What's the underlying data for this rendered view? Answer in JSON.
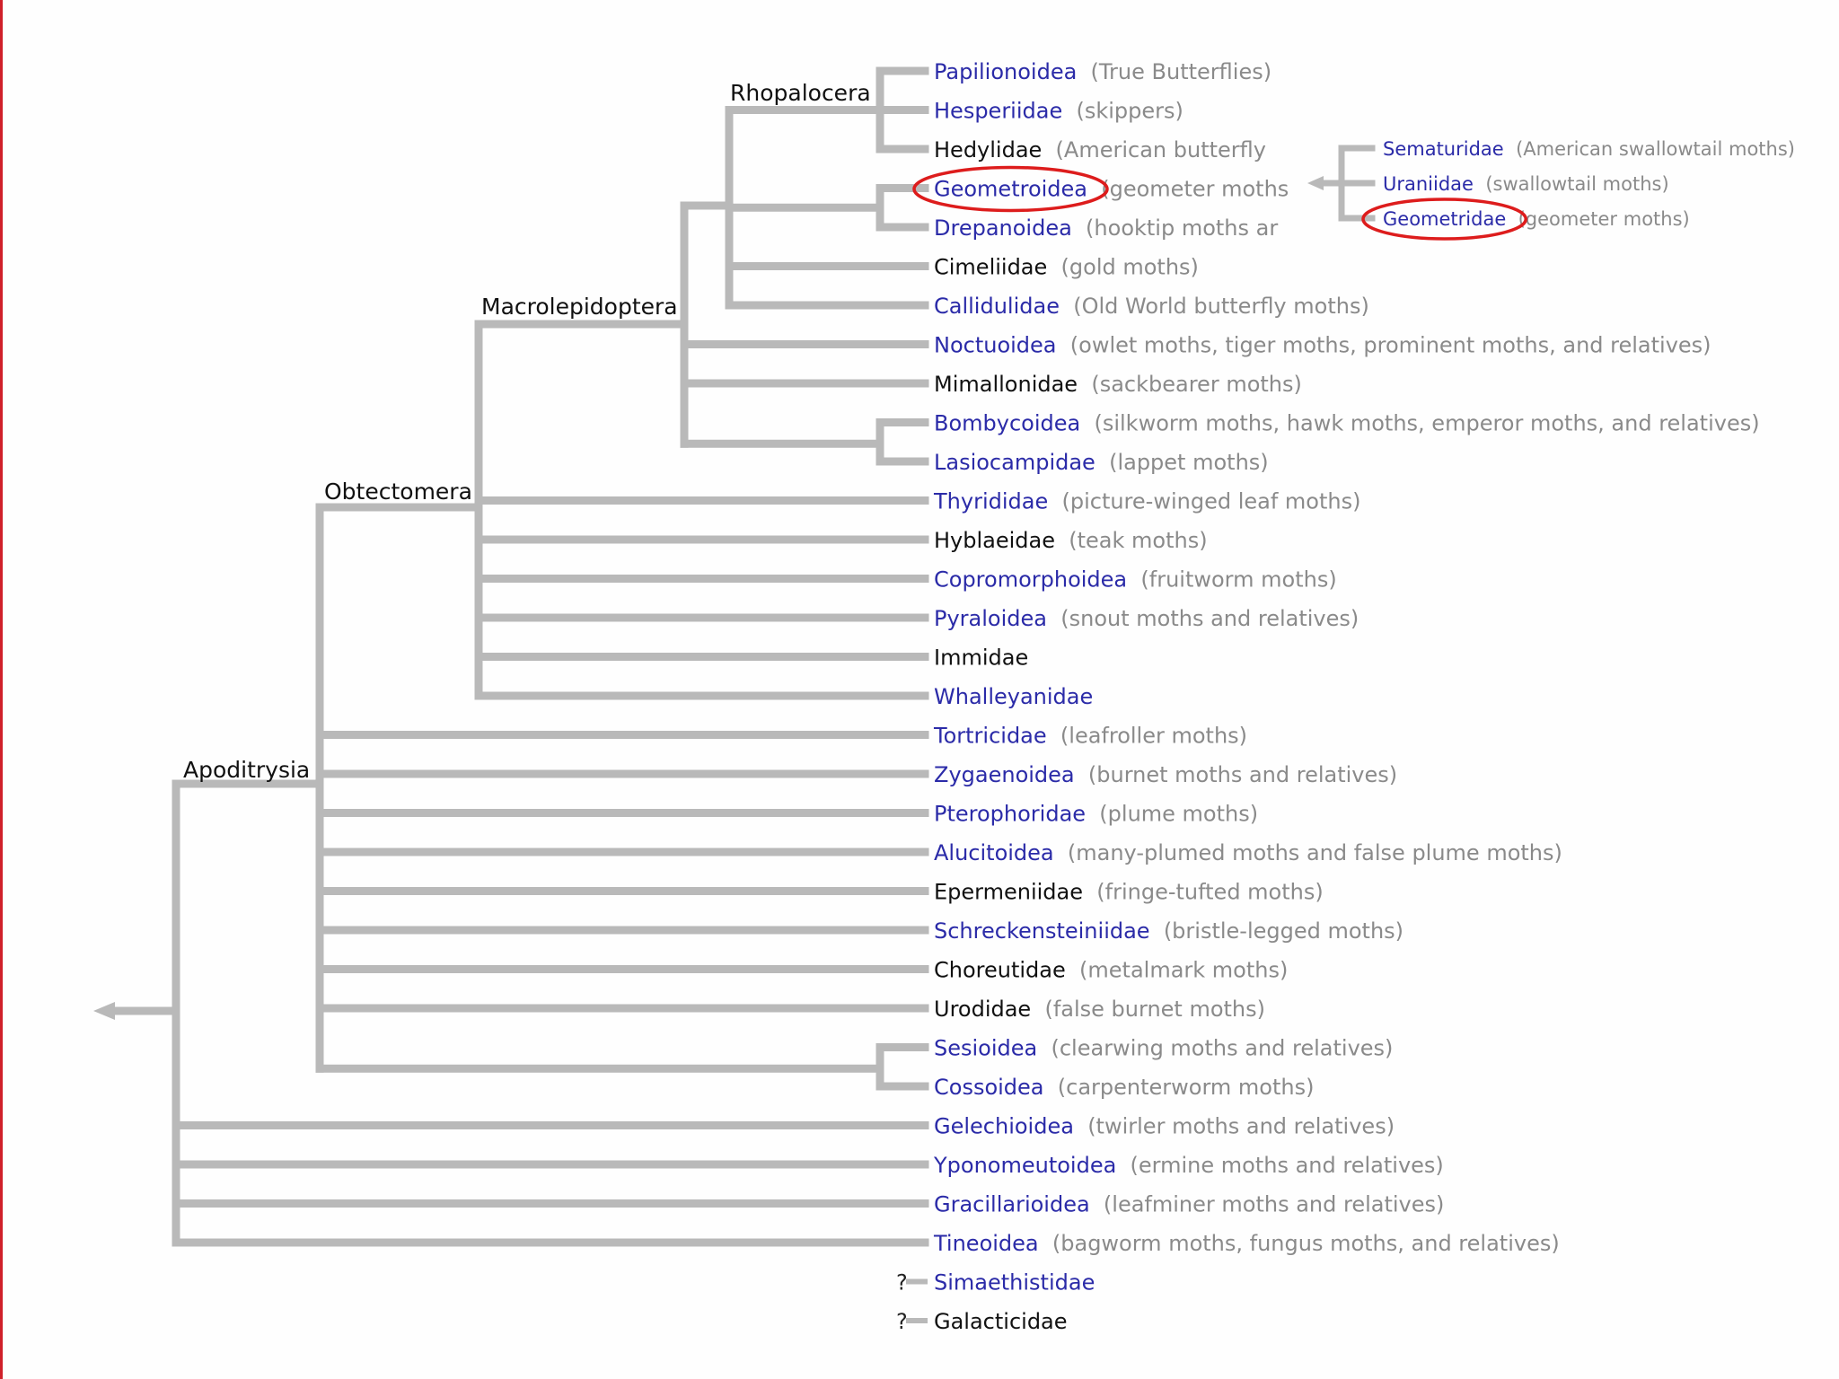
{
  "colors": {
    "branch": "#b9b9b9",
    "link_name": "#2b2ba8",
    "plain_name": "#111111",
    "description": "#8a8a8a",
    "highlight_circle": "#dd1c1c",
    "border": "#d0202a"
  },
  "clades": {
    "rhopalocera": "Rhopalocera",
    "macrolepidoptera": "Macrolepidoptera",
    "obtectomera": "Obtectomera",
    "apoditrysia": "Apoditrysia"
  },
  "taxa": [
    {
      "name": "Papilionoidea",
      "desc": "(True Butterflies)",
      "link": true
    },
    {
      "name": "Hesperiidae",
      "desc": "(skippers)",
      "link": true
    },
    {
      "name": "Hedylidae",
      "desc": "(American butterfly",
      "link": false
    },
    {
      "name": "Geometroidea",
      "desc": "(geometer moths",
      "link": true
    },
    {
      "name": "Drepanoidea",
      "desc": "(hooktip moths ar",
      "link": true
    },
    {
      "name": "Cimeliidae",
      "desc": "(gold moths)",
      "link": false
    },
    {
      "name": "Callidulidae",
      "desc": "(Old World butterfly moths)",
      "link": true
    },
    {
      "name": "Noctuoidea",
      "desc": "(owlet moths, tiger moths, prominent moths, and relatives)",
      "link": true
    },
    {
      "name": "Mimallonidae",
      "desc": "(sackbearer moths)",
      "link": false
    },
    {
      "name": "Bombycoidea",
      "desc": "(silkworm moths, hawk moths, emperor moths, and relatives)",
      "link": true
    },
    {
      "name": "Lasiocampidae",
      "desc": "(lappet moths)",
      "link": true
    },
    {
      "name": "Thyrididae",
      "desc": "(picture-winged leaf moths)",
      "link": true
    },
    {
      "name": "Hyblaeidae",
      "desc": "(teak moths)",
      "link": false
    },
    {
      "name": "Copromorphoidea",
      "desc": "(fruitworm moths)",
      "link": true
    },
    {
      "name": "Pyraloidea",
      "desc": "(snout moths and relatives)",
      "link": true
    },
    {
      "name": "Immidae",
      "desc": "",
      "link": false
    },
    {
      "name": "Whalleyanidae",
      "desc": "",
      "link": true
    },
    {
      "name": "Tortricidae",
      "desc": "(leafroller moths)",
      "link": true
    },
    {
      "name": "Zygaenoidea",
      "desc": "(burnet moths and relatives)",
      "link": true
    },
    {
      "name": "Pterophoridae",
      "desc": "(plume moths)",
      "link": true
    },
    {
      "name": "Alucitoidea",
      "desc": "(many-plumed moths and false plume moths)",
      "link": true
    },
    {
      "name": "Epermeniidae",
      "desc": "(fringe-tufted moths)",
      "link": false
    },
    {
      "name": "Schreckensteiniidae",
      "desc": "(bristle-legged moths)",
      "link": true
    },
    {
      "name": "Choreutidae",
      "desc": "(metalmark moths)",
      "link": false
    },
    {
      "name": "Urodidae",
      "desc": "(false burnet moths)",
      "link": false
    },
    {
      "name": "Sesioidea",
      "desc": "(clearwing moths and relatives)",
      "link": true
    },
    {
      "name": "Cossoidea",
      "desc": "(carpenterworm moths)",
      "link": true
    },
    {
      "name": "Gelechioidea",
      "desc": "(twirler moths and relatives)",
      "link": true
    },
    {
      "name": "Yponomeutoidea",
      "desc": "(ermine moths and relatives)",
      "link": true
    },
    {
      "name": "Gracillarioidea",
      "desc": "(leafminer moths and relatives)",
      "link": true
    },
    {
      "name": "Tineoidea",
      "desc": "(bagworm moths, fungus moths, and relatives)",
      "link": true
    },
    {
      "name": "Simaethistidae",
      "desc": "",
      "link": true,
      "uncertain": true
    },
    {
      "name": "Galacticidae",
      "desc": "",
      "link": false,
      "uncertain": true
    }
  ],
  "uncertain_mark": "?",
  "inset": [
    {
      "name": "Sematuridae",
      "desc": "(American swallowtail moths)"
    },
    {
      "name": "Uraniidae",
      "desc": "(swallowtail moths)"
    },
    {
      "name": "Geometridae",
      "desc": "(geometer moths)"
    }
  ],
  "highlighted": [
    "Geometroidea",
    "Geometridae"
  ]
}
